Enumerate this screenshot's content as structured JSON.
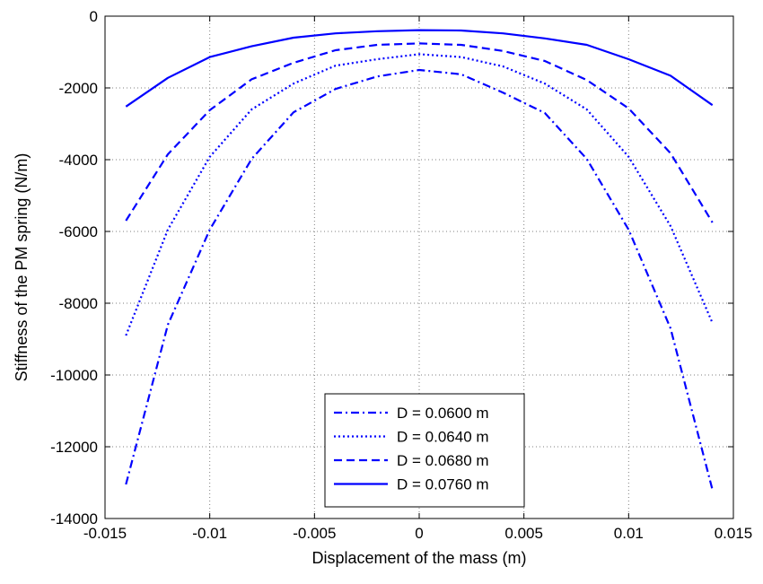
{
  "chart_data": {
    "type": "line",
    "title": "",
    "xlabel": "Displacement of the mass (m)",
    "ylabel": "Stiffness of the PM spring (N/m)",
    "xlim": [
      -0.015,
      0.015
    ],
    "ylim": [
      -14000,
      0
    ],
    "grid": true,
    "legend_position": "bottom-center",
    "xticks": [
      -0.015,
      -0.01,
      -0.005,
      0,
      0.005,
      0.01,
      0.015
    ],
    "xtick_labels": [
      "-0.015",
      "-0.01",
      "-0.005",
      "0",
      "0.005",
      "0.01",
      "0.015"
    ],
    "yticks": [
      0,
      -2000,
      -4000,
      -6000,
      -8000,
      -10000,
      -12000,
      -14000
    ],
    "ytick_labels": [
      "0",
      "-2000",
      "-4000",
      "-6000",
      "-8000",
      "-10000",
      "-12000",
      "-14000"
    ],
    "x": [
      -0.014,
      -0.012,
      -0.01,
      -0.008,
      -0.006,
      -0.004,
      -0.002,
      0,
      0.002,
      0.004,
      0.006,
      0.008,
      0.01,
      0.012,
      0.014
    ],
    "series": [
      {
        "name": "D = 0.0600 m",
        "style": "dashdot",
        "color": "#0000ff",
        "values": [
          -13050,
          -8600,
          -5950,
          -3980,
          -2680,
          -2030,
          -1680,
          -1500,
          -1620,
          -2130,
          -2700,
          -3980,
          -5950,
          -8700,
          -13200
        ]
      },
      {
        "name": "D = 0.0640 m",
        "style": "dotted",
        "color": "#0000ff",
        "values": [
          -8900,
          -5950,
          -3920,
          -2600,
          -1880,
          -1380,
          -1200,
          -1060,
          -1140,
          -1400,
          -1880,
          -2600,
          -3920,
          -5850,
          -8550
        ]
      },
      {
        "name": "D = 0.0680 m",
        "style": "dashed",
        "color": "#0000ff",
        "values": [
          -5700,
          -3850,
          -2620,
          -1760,
          -1300,
          -950,
          -800,
          -760,
          -800,
          -970,
          -1250,
          -1780,
          -2570,
          -3820,
          -5750
        ]
      },
      {
        "name": "D = 0.0760 m",
        "style": "solid",
        "color": "#0000ff",
        "values": [
          -2520,
          -1720,
          -1140,
          -840,
          -600,
          -480,
          -420,
          -390,
          -400,
          -480,
          -620,
          -800,
          -1200,
          -1660,
          -2480
        ]
      }
    ]
  }
}
